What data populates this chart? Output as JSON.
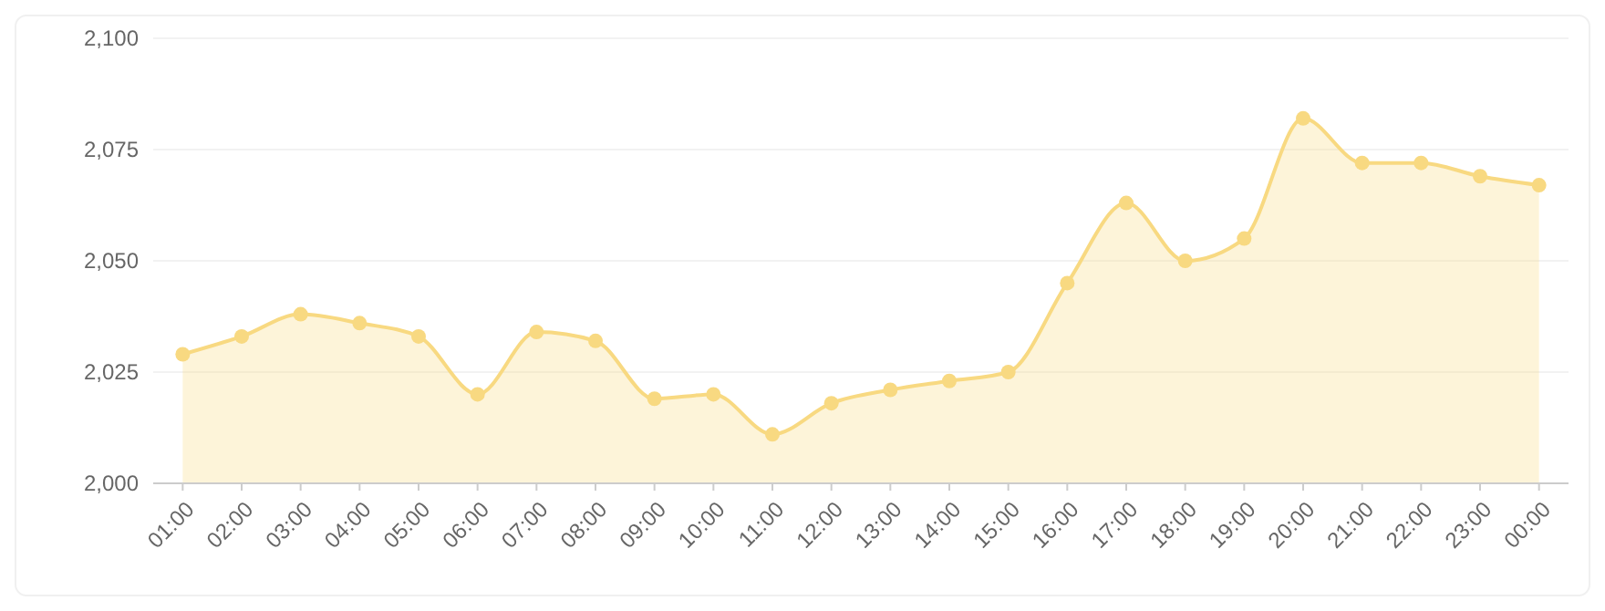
{
  "chart_data": {
    "type": "area",
    "categories": [
      "01:00",
      "02:00",
      "03:00",
      "04:00",
      "05:00",
      "06:00",
      "07:00",
      "08:00",
      "09:00",
      "10:00",
      "11:00",
      "12:00",
      "13:00",
      "14:00",
      "15:00",
      "16:00",
      "17:00",
      "18:00",
      "19:00",
      "20:00",
      "21:00",
      "22:00",
      "23:00",
      "00:00"
    ],
    "series": [
      {
        "color": "#f8d981",
        "values": [
          2029,
          2033,
          2038,
          2036,
          2033,
          2020,
          2034,
          2032,
          2019,
          2020,
          2011,
          2018,
          2021,
          2023,
          2025,
          2045,
          2063,
          2050,
          2055,
          2082,
          2072,
          2072,
          2069,
          2067
        ]
      }
    ],
    "ylim": [
      2000,
      2100
    ],
    "yticks": [
      {
        "value": 2000,
        "label": "2,000"
      },
      {
        "value": 2025,
        "label": "2,025"
      },
      {
        "value": 2050,
        "label": "2,050"
      },
      {
        "value": 2075,
        "label": "2,075"
      },
      {
        "value": 2100,
        "label": "2,100"
      }
    ],
    "grid": "y",
    "marker": "circle"
  }
}
